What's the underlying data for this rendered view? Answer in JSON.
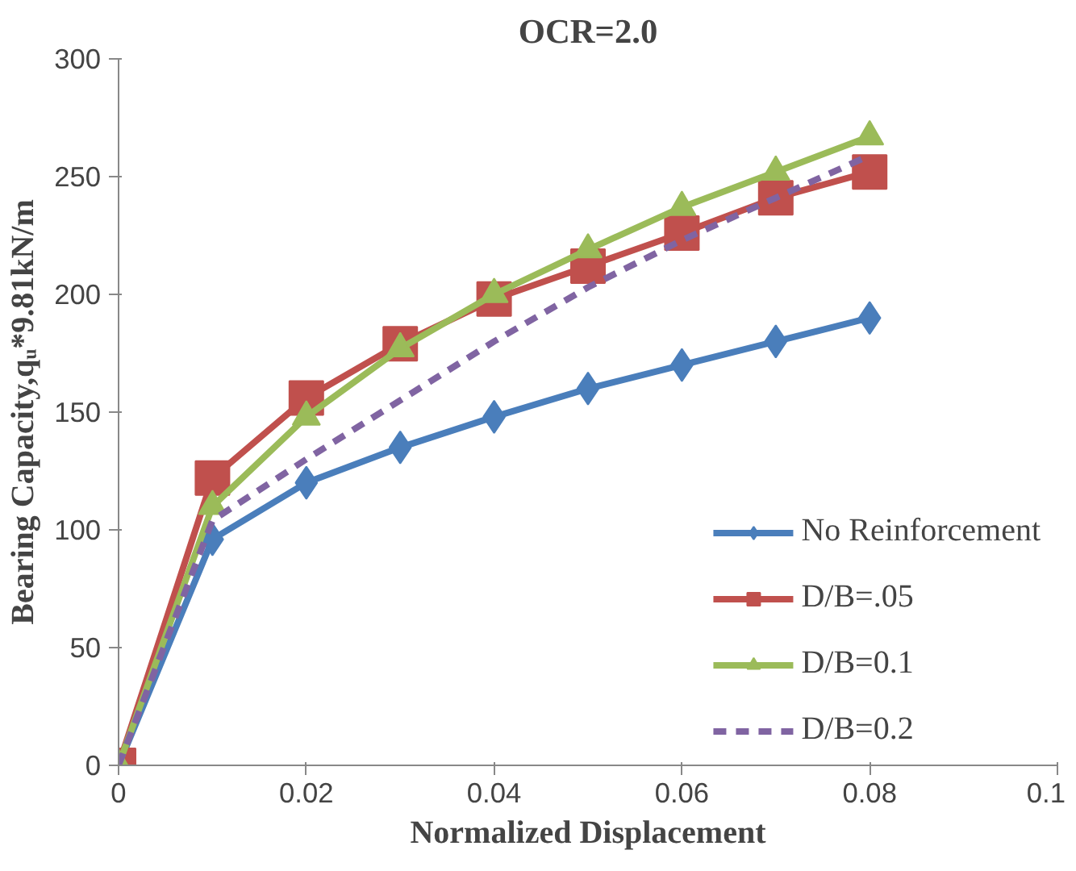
{
  "chart_data": {
    "type": "line",
    "title": "OCR=2.0",
    "xlabel": "Normalized Displacement",
    "ylabel": "Bearing Capacity,qᵤ*9.81kN/m",
    "x": [
      0,
      0.01,
      0.02,
      0.03,
      0.04,
      0.05,
      0.06,
      0.07,
      0.08
    ],
    "xlim": [
      0,
      0.1
    ],
    "xticks": [
      0,
      0.02,
      0.04,
      0.06,
      0.08,
      0.1
    ],
    "ylim": [
      0,
      300
    ],
    "yticks": [
      0,
      50,
      100,
      150,
      200,
      250,
      300
    ],
    "grid": false,
    "legend": "bottom right",
    "series": [
      {
        "name": "No Reinforcement",
        "color": "#4a7ebb",
        "marker": "diamond",
        "line_style": "solid",
        "values": [
          0,
          96,
          120,
          135,
          148,
          160,
          170,
          180,
          190
        ]
      },
      {
        "name": "D/B=.05",
        "color": "#c0504d",
        "marker": "square",
        "line_style": "solid",
        "values": [
          0,
          122,
          156,
          179,
          198,
          212,
          226,
          241,
          252
        ]
      },
      {
        "name": "D/B=0.1",
        "color": "#9bbb59",
        "marker": "triangle",
        "line_style": "solid",
        "values": [
          0,
          110,
          148,
          177,
          200,
          219,
          237,
          252,
          267
        ]
      },
      {
        "name": "D/B=0.2",
        "color": "#8064a2",
        "marker": "none",
        "line_style": "dashed",
        "values": [
          0,
          104,
          130,
          155,
          180,
          203,
          223,
          241,
          259
        ]
      }
    ]
  }
}
